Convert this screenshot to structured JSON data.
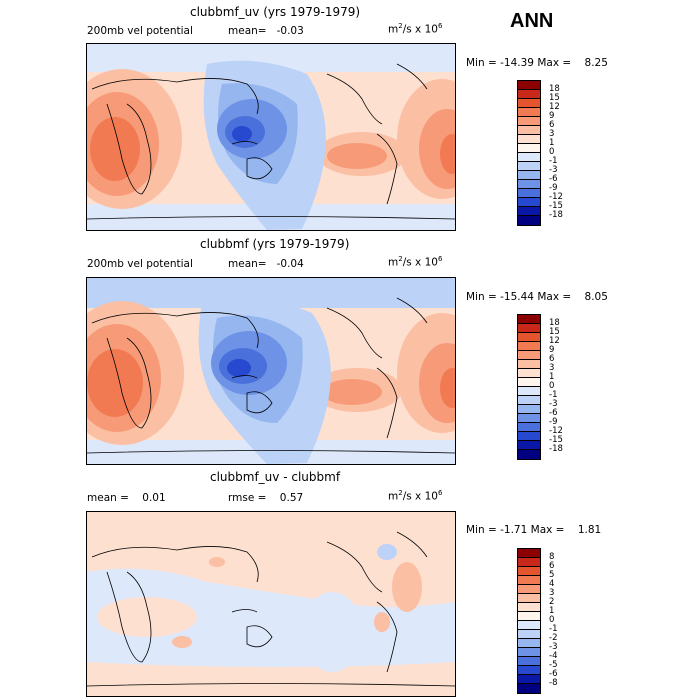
{
  "season": "ANN",
  "panels": [
    {
      "title": "clubbmf_uv (yrs 1979-1979)",
      "field": "200mb vel potential",
      "stat_left_label": "",
      "stat_left_value": "",
      "stat_mid_label": "mean=",
      "stat_mid_value": "-0.03",
      "units_prefix": "m",
      "units_sup": "2",
      "units_mid": "/s x 10",
      "units_exp": "6",
      "min_label": "Min =",
      "min_value": "-14.39",
      "max_label": "Max =",
      "max_value": "8.25",
      "levels": [
        "18",
        "15",
        "12",
        "9",
        "6",
        "3",
        "1",
        "0",
        "-1",
        "-3",
        "-6",
        "-9",
        "-12",
        "-15",
        "-18"
      ],
      "colors": [
        "#8b0000",
        "#c8281a",
        "#e4542e",
        "#f27a52",
        "#f79a78",
        "#fbbfa4",
        "#fde0d0",
        "#fdf5ee",
        "#dde8fa",
        "#bcd2f6",
        "#96b6f0",
        "#6e93e6",
        "#4a70dc",
        "#2649cf",
        "#0a18a8",
        "#000080"
      ],
      "map_note": "equator-centered global map"
    },
    {
      "title": "clubbmf (yrs 1979-1979)",
      "field": "200mb vel potential",
      "stat_left_label": "",
      "stat_left_value": "",
      "stat_mid_label": "mean=",
      "stat_mid_value": "-0.04",
      "units_prefix": "m",
      "units_sup": "2",
      "units_mid": "/s x 10",
      "units_exp": "6",
      "min_label": "Min =",
      "min_value": "-15.44",
      "max_label": "Max =",
      "max_value": "8.05",
      "levels": [
        "18",
        "15",
        "12",
        "9",
        "6",
        "3",
        "1",
        "0",
        "-1",
        "-3",
        "-6",
        "-9",
        "-12",
        "-15",
        "-18"
      ],
      "colors": [
        "#8b0000",
        "#c8281a",
        "#e4542e",
        "#f27a52",
        "#f79a78",
        "#fbbfa4",
        "#fde0d0",
        "#fdf5ee",
        "#dde8fa",
        "#bcd2f6",
        "#96b6f0",
        "#6e93e6",
        "#4a70dc",
        "#2649cf",
        "#0a18a8",
        "#000080"
      ],
      "map_note": ""
    },
    {
      "title": "clubbmf_uv - clubbmf",
      "field": "",
      "stat_left_label": "mean =",
      "stat_left_value": "0.01",
      "stat_mid_label": "rmse =",
      "stat_mid_value": "0.57",
      "units_prefix": "m",
      "units_sup": "2",
      "units_mid": "/s x 10",
      "units_exp": "6",
      "min_label": "Min =",
      "min_value": "-1.71",
      "max_label": "Max =",
      "max_value": "1.81",
      "levels": [
        "8",
        "6",
        "5",
        "4",
        "3",
        "2",
        "1",
        "0",
        "-1",
        "-2",
        "-3",
        "-4",
        "-5",
        "-6",
        "-8"
      ],
      "colors": [
        "#8b0000",
        "#c8281a",
        "#e4542e",
        "#f27a52",
        "#f79a78",
        "#fbbfa4",
        "#fde0d0",
        "#fdf5ee",
        "#dde8fa",
        "#bcd2f6",
        "#96b6f0",
        "#6e93e6",
        "#4a70dc",
        "#2649cf",
        "#0a18a8",
        "#000080"
      ],
      "map_note": ""
    }
  ]
}
